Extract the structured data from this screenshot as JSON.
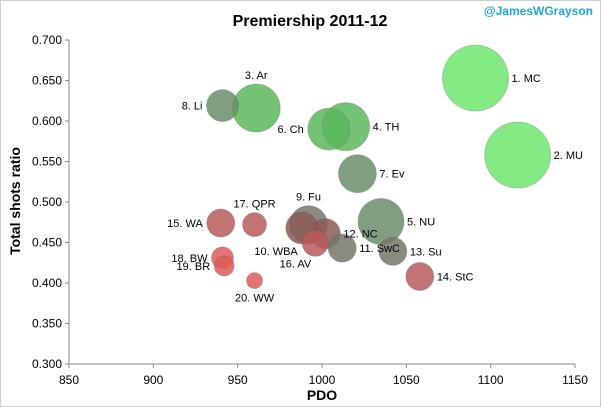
{
  "credit": "@JamesWGrayson",
  "chart_data": {
    "type": "scatter",
    "title": "Premiership 2011-12",
    "xlabel": "PDO",
    "ylabel": "Total shots ratio",
    "xlim": [
      850,
      1150
    ],
    "ylim": [
      0.3,
      0.7
    ],
    "xticks": [
      "850",
      "900",
      "950",
      "1000",
      "1050",
      "1100",
      "1150"
    ],
    "yticks": [
      "0.300",
      "0.350",
      "0.400",
      "0.450",
      "0.500",
      "0.550",
      "0.600",
      "0.650",
      "0.700"
    ],
    "grid": "none",
    "legend": "none",
    "note": "bubble size varies by team",
    "colors": {
      "bright_green": "#6fe86f",
      "green": "#5cb85c",
      "dark_green": "#6a8e6a",
      "olive": "#75756a",
      "brown": "#8c5a56",
      "red_brown": "#b85a5a",
      "red": "#e05a5a"
    },
    "points": [
      {
        "label": "1. MC",
        "x": 1091,
        "y": 0.653,
        "size": 33,
        "color": "bright_green",
        "label_side": "right"
      },
      {
        "label": "2. MU",
        "x": 1116,
        "y": 0.558,
        "size": 33,
        "color": "bright_green",
        "label_side": "right"
      },
      {
        "label": "3. Ar",
        "x": 961,
        "y": 0.616,
        "size": 24,
        "color": "green",
        "label_side": "top"
      },
      {
        "label": "4. TH",
        "x": 1014,
        "y": 0.593,
        "size": 24,
        "color": "green",
        "label_side": "right"
      },
      {
        "label": "6. Ch",
        "x": 1004,
        "y": 0.59,
        "size": 21,
        "color": "green",
        "label_side": "left"
      },
      {
        "label": "7. Ev",
        "x": 1021,
        "y": 0.535,
        "size": 19,
        "color": "dark_green",
        "label_side": "right"
      },
      {
        "label": "8. Li",
        "x": 941,
        "y": 0.619,
        "size": 16,
        "color": "dark_green",
        "label_side": "left"
      },
      {
        "label": "5. NU",
        "x": 1035,
        "y": 0.476,
        "size": 23,
        "color": "dark_green",
        "label_side": "right"
      },
      {
        "label": "9. Fu",
        "x": 992,
        "y": 0.472,
        "size": 19,
        "color": "olive",
        "label_side": "top"
      },
      {
        "label": "12. NC",
        "x": 1002,
        "y": 0.461,
        "size": 15,
        "color": "brown",
        "label_side": "right"
      },
      {
        "label": "10. WBA",
        "x": 988,
        "y": 0.468,
        "size": 16,
        "color": "brown",
        "label_side": "bottom-left"
      },
      {
        "label": "11. SwC",
        "x": 1012,
        "y": 0.443,
        "size": 14,
        "color": "olive",
        "label_side": "right"
      },
      {
        "label": "13. Su",
        "x": 1042,
        "y": 0.439,
        "size": 14,
        "color": "olive",
        "label_side": "right"
      },
      {
        "label": "14. StC",
        "x": 1058,
        "y": 0.408,
        "size": 14,
        "color": "red_brown",
        "label_side": "right"
      },
      {
        "label": "15. WA",
        "x": 940,
        "y": 0.474,
        "size": 14,
        "color": "red_brown",
        "label_side": "left"
      },
      {
        "label": "16. AV",
        "x": 996,
        "y": 0.449,
        "size": 13,
        "color": "red_brown",
        "label_side": "bottom-left"
      },
      {
        "label": "17. QPR",
        "x": 960,
        "y": 0.472,
        "size": 12,
        "color": "red_brown",
        "label_side": "top"
      },
      {
        "label": "18. BW",
        "x": 941,
        "y": 0.431,
        "size": 11,
        "color": "red",
        "label_side": "left"
      },
      {
        "label": "19. BR",
        "x": 942,
        "y": 0.421,
        "size": 10,
        "color": "red",
        "label_side": "left"
      },
      {
        "label": "20. WW",
        "x": 960,
        "y": 0.403,
        "size": 8,
        "color": "red",
        "label_side": "bottom"
      }
    ]
  }
}
